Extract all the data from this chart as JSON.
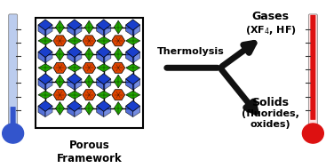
{
  "bg_color": "#ffffff",
  "arrow_color": "#111111",
  "thermolysis_label": "Thermolysis",
  "gases_label": "Gases",
  "gases_sublabel": "(XF$_4$, HF)",
  "solids_label": "Solids",
  "solids_sublabel": "(fluorides,\noxides)",
  "porous_label": "Porous\nFramework",
  "blue": "#1a3fcc",
  "orange": "#dd4400",
  "green": "#22aa00",
  "black": "#000000",
  "cold_bulb": "#3355cc",
  "cold_tube": "#aabbdd",
  "hot_bulb": "#dd1111",
  "hot_tube_fill": "#dd1111",
  "hot_tube_bg": "#ffcccc"
}
